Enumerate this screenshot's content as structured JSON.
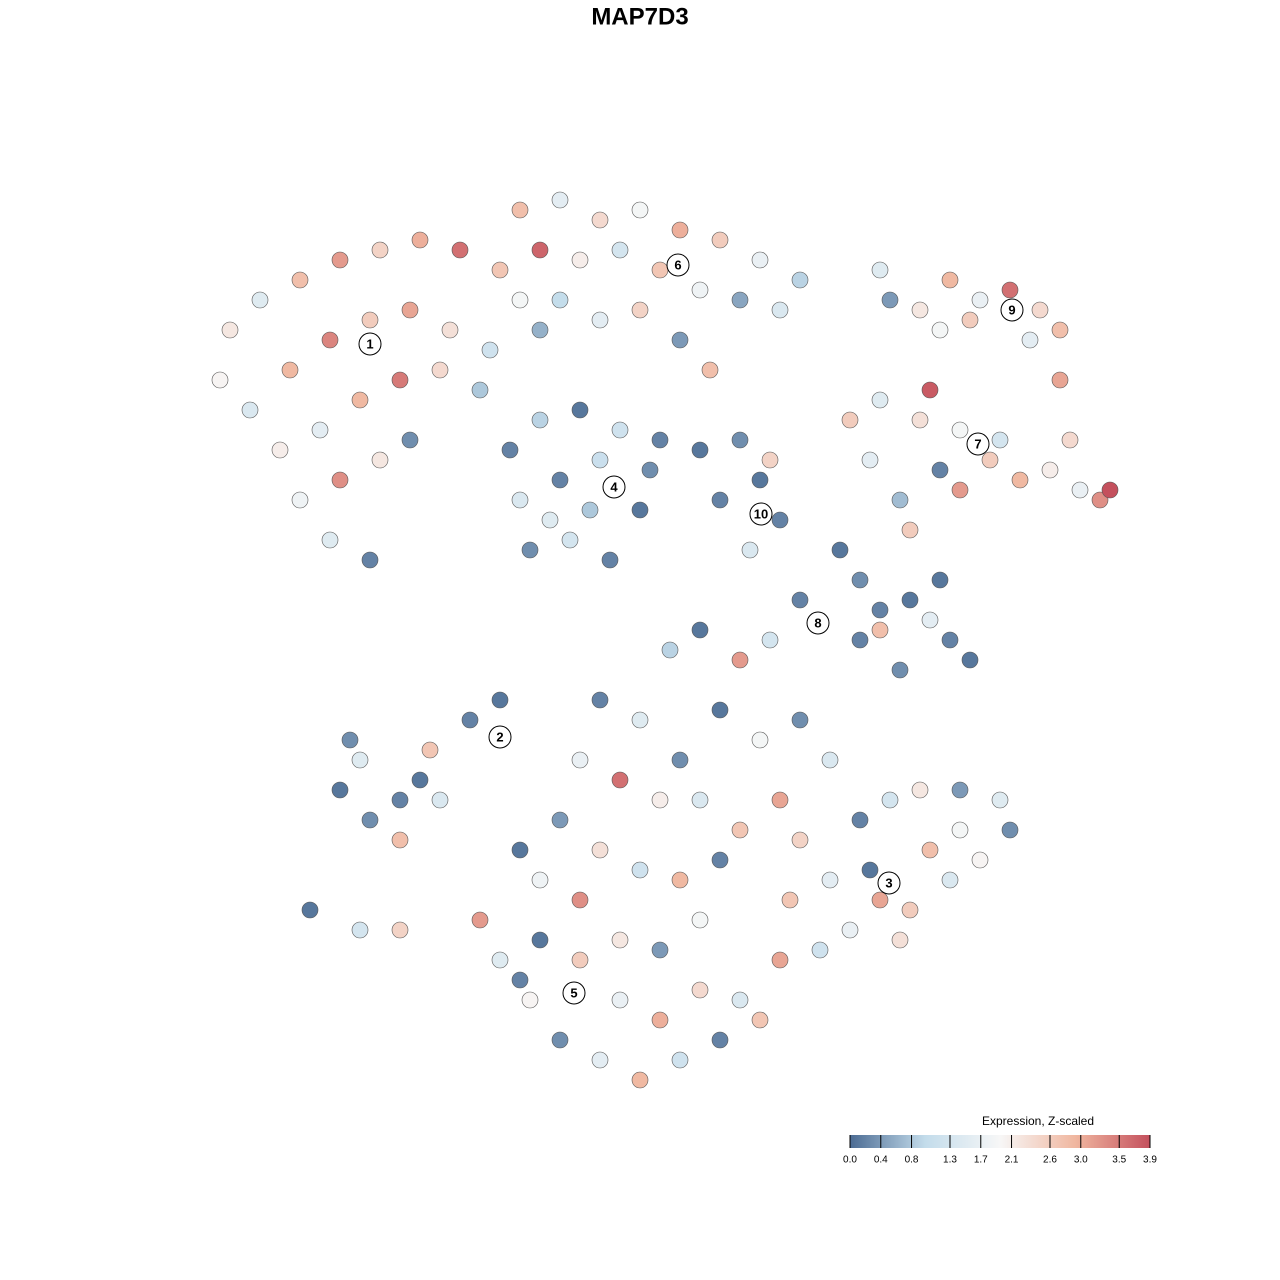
{
  "chart_data": {
    "type": "scatter",
    "title": "MAP7D3",
    "xlim": [
      0,
      1280
    ],
    "ylim": [
      1280,
      0
    ],
    "colorbar_title": "Expression, Z-scaled",
    "colorbar_lim": [
      0,
      3.9
    ],
    "colorscale": [
      "#4b6b93",
      "#c3dceb",
      "#f7f7f7",
      "#f0b7a0",
      "#c4505d"
    ],
    "colorbar_ticks": [
      {
        "value": 0,
        "label": "0.0"
      },
      {
        "value": 0.4,
        "label": "0.4"
      },
      {
        "value": 0.8,
        "label": "0.8"
      },
      {
        "value": 1.3,
        "label": "1.3"
      },
      {
        "value": 1.7,
        "label": "1.7"
      },
      {
        "value": 2.1,
        "label": "2.1"
      },
      {
        "value": 2.6,
        "label": "2.6"
      },
      {
        "value": 3,
        "label": "3.0"
      },
      {
        "value": 3.5,
        "label": "3.5"
      },
      {
        "value": 3.9,
        "label": "3.9"
      }
    ],
    "x": [
      230,
      260,
      300,
      340,
      380,
      420,
      460,
      500,
      520,
      540,
      220,
      250,
      290,
      330,
      370,
      410,
      450,
      490,
      280,
      320,
      360,
      400,
      440,
      480,
      300,
      340,
      380,
      410,
      330,
      370,
      520,
      560,
      600,
      640,
      680,
      720,
      760,
      800,
      540,
      580,
      620,
      660,
      700,
      740,
      780,
      560,
      600,
      640,
      680,
      710,
      510,
      540,
      580,
      620,
      650,
      520,
      560,
      600,
      640,
      530,
      570,
      610,
      590,
      550,
      660,
      700,
      740,
      720,
      760,
      780,
      750,
      770,
      890,
      920,
      950,
      980,
      1010,
      1040,
      1060,
      1060,
      940,
      1030,
      880,
      970,
      850,
      880,
      920,
      930,
      960,
      990,
      1020,
      1050,
      1080,
      1100,
      1110,
      900,
      910,
      870,
      960,
      1000,
      940,
      1070,
      840,
      860,
      880,
      910,
      950,
      970,
      900,
      930,
      880,
      800,
      770,
      740,
      700,
      670,
      940,
      860,
      340,
      370,
      400,
      360,
      430,
      420,
      470,
      500,
      400,
      350,
      440,
      310,
      360,
      400,
      600,
      640,
      680,
      720,
      760,
      800,
      830,
      580,
      620,
      660,
      700,
      740,
      780,
      560,
      600,
      640,
      680,
      720,
      540,
      520,
      800,
      830,
      860,
      890,
      920,
      960,
      1000,
      1010,
      930,
      880,
      850,
      910,
      950,
      980,
      790,
      820,
      780,
      870,
      960,
      900,
      480,
      500,
      530,
      560,
      600,
      640,
      680,
      720,
      740,
      700,
      660,
      620,
      580,
      540,
      620,
      660,
      700,
      580,
      520,
      760
    ],
    "y": [
      330,
      300,
      280,
      260,
      250,
      240,
      250,
      270,
      300,
      330,
      380,
      410,
      370,
      340,
      320,
      310,
      330,
      350,
      450,
      430,
      400,
      380,
      370,
      390,
      500,
      480,
      460,
      440,
      540,
      560,
      210,
      200,
      220,
      210,
      230,
      240,
      260,
      280,
      250,
      260,
      250,
      270,
      290,
      300,
      310,
      300,
      320,
      310,
      340,
      370,
      450,
      420,
      410,
      430,
      470,
      500,
      480,
      460,
      510,
      550,
      540,
      560,
      510,
      520,
      440,
      450,
      440,
      500,
      480,
      520,
      550,
      460,
      300,
      310,
      280,
      300,
      290,
      310,
      330,
      380,
      330,
      340,
      270,
      320,
      420,
      400,
      420,
      390,
      430,
      460,
      480,
      470,
      490,
      500,
      490,
      500,
      530,
      460,
      490,
      440,
      470,
      440,
      550,
      580,
      610,
      600,
      640,
      660,
      670,
      620,
      630,
      600,
      640,
      660,
      630,
      650,
      580,
      640,
      790,
      820,
      800,
      760,
      750,
      780,
      720,
      700,
      840,
      740,
      800,
      910,
      930,
      930,
      700,
      720,
      760,
      710,
      740,
      720,
      760,
      760,
      780,
      800,
      800,
      830,
      800,
      820,
      850,
      870,
      880,
      860,
      880,
      850,
      840,
      880,
      820,
      800,
      790,
      790,
      800,
      830,
      850,
      900,
      930,
      910,
      880,
      860,
      900,
      950,
      960,
      870,
      830,
      940,
      920,
      960,
      1000,
      1040,
      1060,
      1080,
      1060,
      1040,
      1000,
      990,
      1020,
      1000,
      960,
      940,
      940,
      950,
      920,
      900,
      980,
      1020
    ],
    "values": [
      2.2,
      1.5,
      2.8,
      3.2,
      2.5,
      3.0,
      3.6,
      2.7,
      1.9,
      0.6,
      2.0,
      1.4,
      2.9,
      3.4,
      2.6,
      3.1,
      2.3,
      1.2,
      2.1,
      1.6,
      2.9,
      3.5,
      2.4,
      0.8,
      1.8,
      3.3,
      2.2,
      0.3,
      1.5,
      0.2,
      2.8,
      1.6,
      2.4,
      1.9,
      3.0,
      2.6,
      1.7,
      0.9,
      3.7,
      2.1,
      1.3,
      2.7,
      1.8,
      0.5,
      1.4,
      1.0,
      1.6,
      2.5,
      0.4,
      2.8,
      0.2,
      0.9,
      0.1,
      1.2,
      0.3,
      1.4,
      0.2,
      1.1,
      0.1,
      0.3,
      1.3,
      0.2,
      0.8,
      1.5,
      0.2,
      0.1,
      0.3,
      0.2,
      0.1,
      0.2,
      1.4,
      2.5,
      0.4,
      2.2,
      2.9,
      1.7,
      3.6,
      2.4,
      2.8,
      3.1,
      1.9,
      1.6,
      1.5,
      2.6,
      2.6,
      1.5,
      2.3,
      3.8,
      1.9,
      2.6,
      2.9,
      2.1,
      1.7,
      3.3,
      3.9,
      0.7,
      2.6,
      1.6,
      3.2,
      1.3,
      0.2,
      2.4,
      0.1,
      0.3,
      0.2,
      0.1,
      0.2,
      0.1,
      0.3,
      1.6,
      2.8,
      0.2,
      1.3,
      3.2,
      0.1,
      0.9,
      0.1,
      0.2,
      0.1,
      0.3,
      0.2,
      1.5,
      2.7,
      0.1,
      0.2,
      0.1,
      2.8,
      0.3,
      1.4,
      0.1,
      1.3,
      2.5,
      0.2,
      1.5,
      0.3,
      0.1,
      1.9,
      0.3,
      1.4,
      1.7,
      3.6,
      2.1,
      1.4,
      2.7,
      3.1,
      0.4,
      2.3,
      1.2,
      2.9,
      0.2,
      1.8,
      0.1,
      2.5,
      1.6,
      0.2,
      1.3,
      2.2,
      0.4,
      1.5,
      0.3,
      2.8,
      3.1,
      1.7,
      2.6,
      1.4,
      2.0,
      2.7,
      1.2,
      3.1,
      0.1,
      1.9,
      2.3,
      3.2,
      1.5,
      2.0,
      0.3,
      1.6,
      2.9,
      1.2,
      0.2,
      1.4,
      2.4,
      3.0,
      1.7,
      2.6,
      0.1,
      2.2,
      0.4,
      1.9,
      3.3,
      0.2,
      2.7
    ],
    "annotations": [
      {
        "text": "1",
        "x": 370,
        "y": 344
      },
      {
        "text": "6",
        "x": 678,
        "y": 265
      },
      {
        "text": "9",
        "x": 1012,
        "y": 310
      },
      {
        "text": "4",
        "x": 614,
        "y": 487
      },
      {
        "text": "10",
        "x": 761,
        "y": 514
      },
      {
        "text": "7",
        "x": 978,
        "y": 444
      },
      {
        "text": "8",
        "x": 818,
        "y": 623
      },
      {
        "text": "2",
        "x": 500,
        "y": 737
      },
      {
        "text": "3",
        "x": 889,
        "y": 883
      },
      {
        "text": "5",
        "x": 574,
        "y": 993
      }
    ]
  }
}
